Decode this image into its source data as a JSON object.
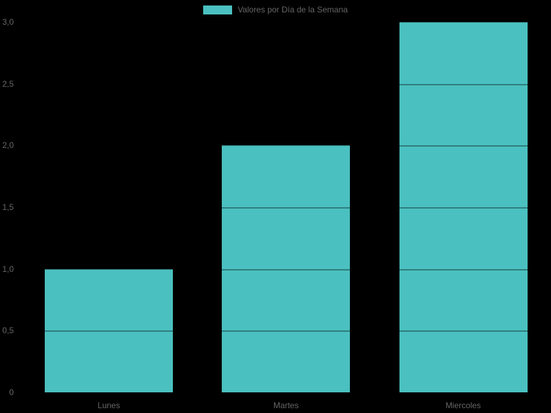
{
  "chart_data": {
    "type": "bar",
    "title": "",
    "legend": {
      "label": "Valores por Día de la Semana",
      "position": "top"
    },
    "categories": [
      "Lunes",
      "Martes",
      "Miercoles"
    ],
    "values": [
      1,
      2,
      3
    ],
    "series": [
      {
        "name": "Valores por Día de la Semana",
        "values": [
          1,
          2,
          3
        ]
      }
    ],
    "xlabel": "",
    "ylabel": "",
    "y_ticks": [
      "0",
      "0,5",
      "1,0",
      "1,5",
      "2,0",
      "2,5",
      "3,0"
    ],
    "y_tick_values": [
      0,
      0.5,
      1,
      1.5,
      2,
      2.5,
      3
    ],
    "ylim": [
      0,
      3
    ],
    "grid": true,
    "colors": {
      "bar": "#4BC0C0",
      "text": "#666666",
      "background": "#000000",
      "gridline_overlay": "rgba(0,0,0,0.35)"
    }
  }
}
